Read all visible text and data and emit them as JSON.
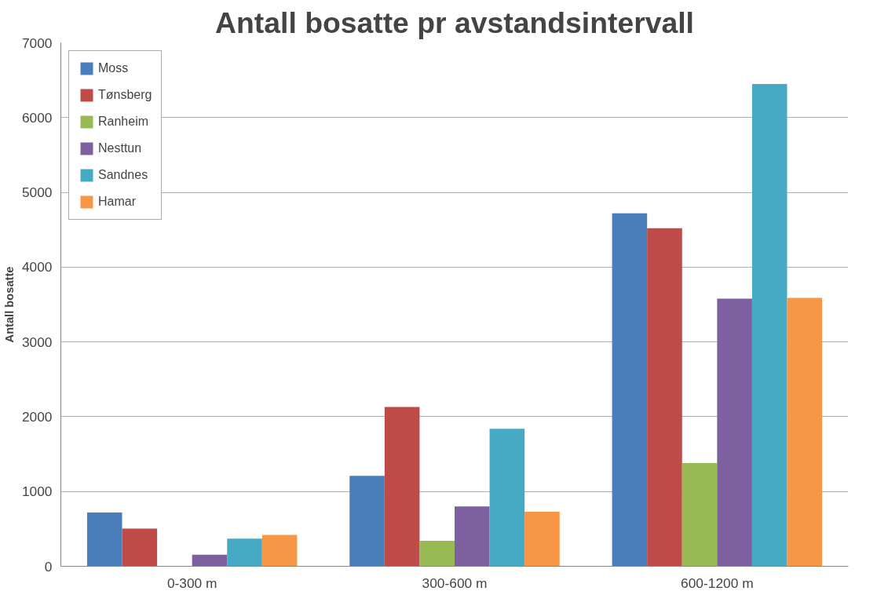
{
  "chart_data": {
    "type": "bar",
    "title": "Antall bosatte pr avstandsintervall",
    "ylabel": "Antall bosatte",
    "categories": [
      "0-300 m",
      "300-600 m",
      "600-1200 m"
    ],
    "series": [
      {
        "name": "Moss",
        "color": "#4a7ebb",
        "values": [
          720,
          1210,
          4720
        ]
      },
      {
        "name": "Tønsberg",
        "color": "#be4b48",
        "values": [
          505,
          2130,
          4520
        ]
      },
      {
        "name": "Ranheim",
        "color": "#98b954",
        "values": [
          5,
          340,
          1380
        ]
      },
      {
        "name": "Nesttun",
        "color": "#7d60a0",
        "values": [
          155,
          800,
          3580
        ]
      },
      {
        "name": "Sandnes",
        "color": "#46aac5",
        "values": [
          370,
          1840,
          6450
        ]
      },
      {
        "name": "Hamar",
        "color": "#f79646",
        "values": [
          420,
          730,
          3590
        ]
      }
    ],
    "ylim": [
      0,
      7000
    ],
    "yticks": [
      0,
      1000,
      2000,
      3000,
      4000,
      5000,
      6000,
      7000
    ],
    "grid": "y",
    "legend": "top left"
  }
}
